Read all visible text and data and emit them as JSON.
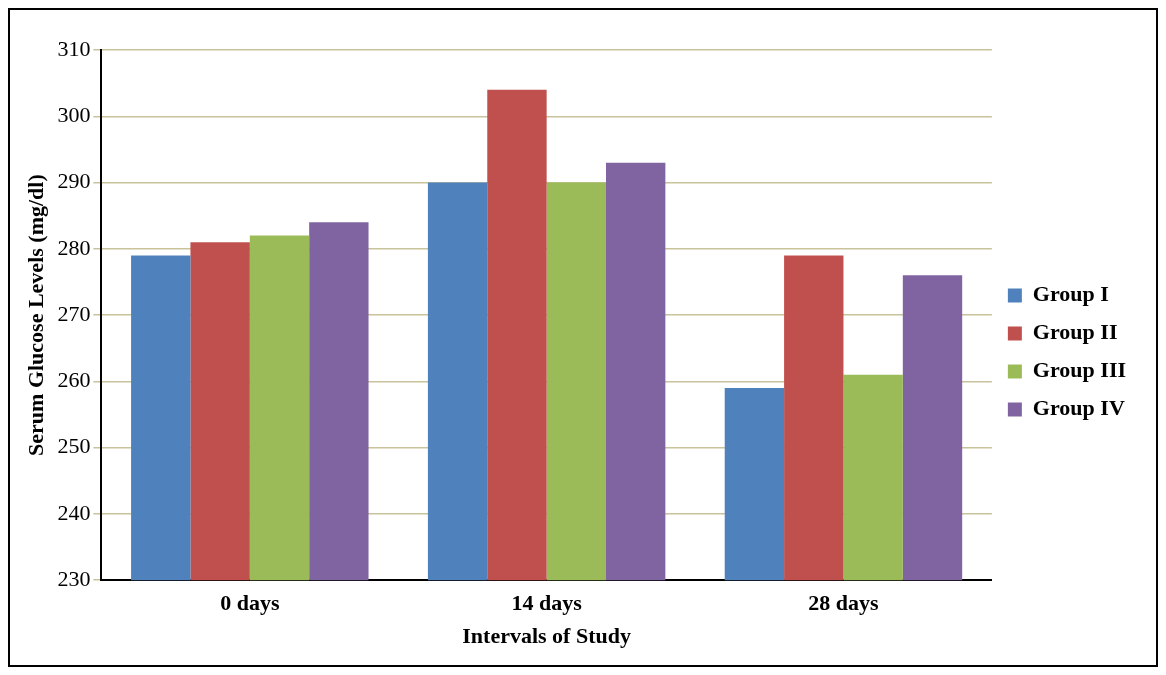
{
  "chart_data": {
    "type": "bar",
    "xlabel": "Intervals of Study",
    "ylabel": "Serum Glucose Levels (mg/dl)",
    "categories": [
      "0 days",
      "14 days",
      "28 days"
    ],
    "series": [
      {
        "name": "Group I",
        "color": "#4f81bd",
        "values": [
          279,
          290,
          259
        ]
      },
      {
        "name": "Group II",
        "color": "#c0504d",
        "values": [
          281,
          304,
          279
        ]
      },
      {
        "name": "Group III",
        "color": "#9bbb59",
        "values": [
          282,
          290,
          261
        ]
      },
      {
        "name": "Group IV",
        "color": "#8064a2",
        "values": [
          284,
          293,
          276
        ]
      }
    ],
    "ylim": [
      230,
      310
    ],
    "yticks": [
      230,
      240,
      250,
      260,
      270,
      280,
      290,
      300,
      310
    ],
    "grid": "y",
    "legend": "right"
  }
}
